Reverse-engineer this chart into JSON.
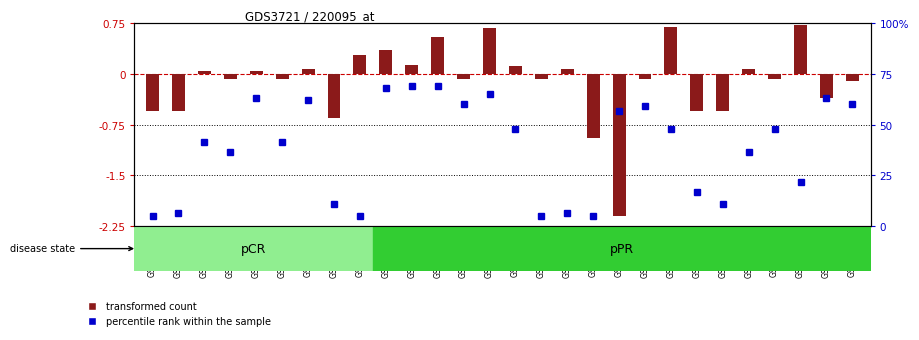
{
  "title": "GDS3721 / 220095_at",
  "samples": [
    "GSM559062",
    "GSM559063",
    "GSM559064",
    "GSM559065",
    "GSM559066",
    "GSM559067",
    "GSM559068",
    "GSM559069",
    "GSM559042",
    "GSM559043",
    "GSM559044",
    "GSM559045",
    "GSM559046",
    "GSM559047",
    "GSM559048",
    "GSM559049",
    "GSM559050",
    "GSM559051",
    "GSM559052",
    "GSM559053",
    "GSM559054",
    "GSM559055",
    "GSM559056",
    "GSM559057",
    "GSM559058",
    "GSM559059",
    "GSM559060",
    "GSM559061"
  ],
  "red_bars": [
    -0.55,
    -0.55,
    0.05,
    -0.08,
    0.05,
    -0.08,
    0.07,
    -0.65,
    0.28,
    0.35,
    0.13,
    0.55,
    -0.08,
    0.68,
    0.12,
    -0.08,
    0.07,
    -0.95,
    -2.1,
    -0.08,
    0.7,
    -0.55,
    -0.55,
    0.07,
    -0.08,
    0.73,
    -0.35,
    -0.1
  ],
  "blue_dots": [
    -2.1,
    -2.05,
    -1.0,
    -1.15,
    -0.35,
    -1.0,
    -0.38,
    -1.93,
    -2.1,
    -0.2,
    -0.18,
    -0.18,
    -0.44,
    -0.3,
    -0.82,
    -2.1,
    -2.05,
    -2.1,
    -0.55,
    -0.48,
    -0.82,
    -1.75,
    -1.93,
    -1.15,
    -0.82,
    -1.6,
    -0.35,
    -0.45
  ],
  "pcr_count": 9,
  "ylim": [
    -2.25,
    0.75
  ],
  "yticks": [
    0.75,
    0.0,
    -0.75,
    -1.5,
    -2.25
  ],
  "right_yticks": [
    100,
    75,
    50,
    25,
    0
  ],
  "bar_color": "#8B1A1A",
  "dot_color": "#0000CD",
  "zero_line_color": "#CC0000",
  "pcr_color": "#90EE90",
  "ppr_color": "#32CD32",
  "bg_color": "#FFFFFF",
  "grid_color": "#000000"
}
